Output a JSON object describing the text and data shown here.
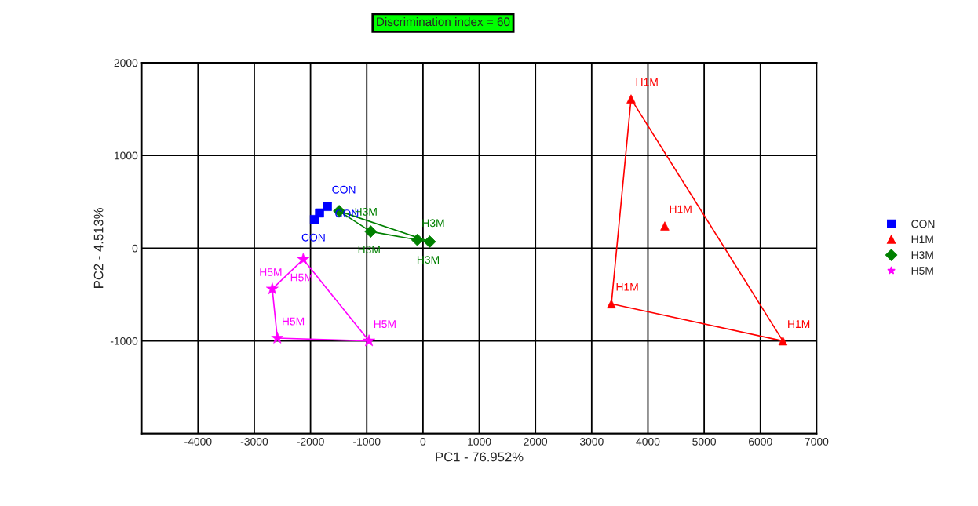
{
  "chart_data": {
    "type": "scatter",
    "title": "Discrimination index = 60",
    "xlabel": "PC1 - 76.952%",
    "ylabel": "PC2 - 4.513%",
    "xlim": [
      -5000,
      7000
    ],
    "ylim": [
      -2000,
      2000
    ],
    "xticks": [
      -4000,
      -3000,
      -2000,
      -1000,
      0,
      1000,
      2000,
      3000,
      4000,
      5000,
      6000,
      7000
    ],
    "yticks": [
      {
        "value": -2000,
        "label": null
      },
      -1000,
      0,
      1000,
      2000
    ],
    "grid": true,
    "legend": "right",
    "series": [
      {
        "name": "CON",
        "color": "#0000ff",
        "marker": "square",
        "x": [
          -1930,
          -1840,
          -1700
        ],
        "values": [
          310,
          380,
          450
        ]
      },
      {
        "name": "H1M",
        "color": "#ff0000",
        "marker": "triangle",
        "x": [
          3700,
          4300,
          3350,
          6400
        ],
        "values": [
          1610,
          240,
          -600,
          -1000
        ]
      },
      {
        "name": "H3M",
        "color": "#008000",
        "marker": "diamond",
        "x": [
          -1490,
          -930,
          -100,
          120
        ],
        "values": [
          400,
          180,
          90,
          70
        ]
      },
      {
        "name": "H5M",
        "color": "#ff00ff",
        "marker": "star",
        "x": [
          -2130,
          -2680,
          -2590,
          -960
        ],
        "values": [
          -120,
          -440,
          -970,
          -1000
        ]
      },
      {
        "type": "line",
        "color": "#ff0000",
        "x": [
          3350,
          3700
        ],
        "values": [
          -600,
          1610
        ]
      },
      {
        "type": "line",
        "color": "#ff0000",
        "x": [
          3700,
          6400
        ],
        "values": [
          1610,
          -1000
        ]
      },
      {
        "type": "line",
        "color": "#ff0000",
        "x": [
          3350,
          6400
        ],
        "values": [
          -600,
          -1000
        ]
      },
      {
        "type": "line",
        "color": "#008000",
        "x": [
          -1490,
          120
        ],
        "values": [
          400,
          70
        ]
      },
      {
        "type": "line",
        "color": "#008000",
        "x": [
          -1490,
          -930
        ],
        "values": [
          400,
          180
        ]
      },
      {
        "type": "line",
        "color": "#008000",
        "x": [
          -930,
          -100
        ],
        "values": [
          180,
          90
        ]
      },
      {
        "type": "line",
        "color": "#008000",
        "x": [
          -100,
          120
        ],
        "values": [
          90,
          70
        ]
      },
      {
        "type": "line",
        "color": "#ff00ff",
        "x": [
          -2680,
          -2130
        ],
        "values": [
          -440,
          -120
        ]
      },
      {
        "type": "line",
        "color": "#ff00ff",
        "x": [
          -2130,
          -960
        ],
        "values": [
          -120,
          -1000
        ]
      },
      {
        "type": "line",
        "color": "#ff00ff",
        "x": [
          -2590,
          -960
        ],
        "values": [
          -970,
          -1000
        ]
      },
      {
        "type": "line",
        "color": "#ff00ff",
        "x": [
          -2680,
          -2590
        ],
        "values": [
          -440,
          -970
        ]
      }
    ],
    "annotations": [
      {
        "text": "CON",
        "x": -1930,
        "y": 310
      },
      {
        "text": "CON",
        "x": -1840,
        "y": 380
      },
      {
        "text": "CON",
        "x": -1700,
        "y": 450
      },
      {
        "text": "H1M",
        "x": 3700,
        "y": 1610
      },
      {
        "text": "H1M",
        "x": 4300,
        "y": 240
      },
      {
        "text": "H1M",
        "x": 3350,
        "y": -600
      },
      {
        "text": "H1M",
        "x": 6400,
        "y": -1000
      },
      {
        "text": "H3M",
        "x": -1490,
        "y": 400
      },
      {
        "text": "H3M",
        "x": -930,
        "y": 180
      },
      {
        "text": "H3M",
        "x": -100,
        "y": 90
      },
      {
        "text": "H3M",
        "x": 120,
        "y": 70
      },
      {
        "text": "H5M",
        "x": -2130,
        "y": -120
      },
      {
        "text": "H5M",
        "x": -2680,
        "y": -440
      },
      {
        "text": "H5M",
        "x": -2590,
        "y": -970
      },
      {
        "text": "H5M",
        "x": -960,
        "y": -1000
      }
    ]
  }
}
